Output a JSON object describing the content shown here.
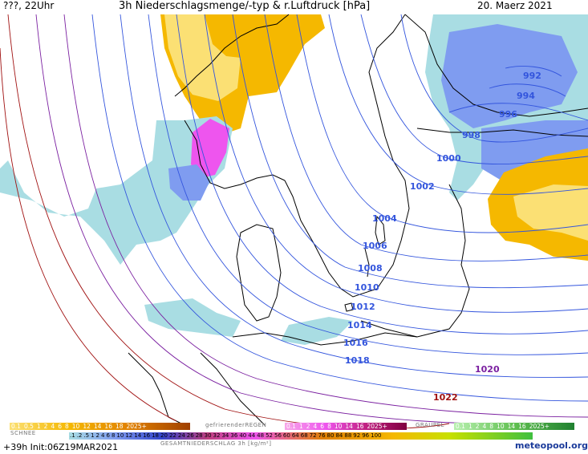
{
  "header": {
    "left": "???, 22Uhr",
    "title": "3h Niederschlagsmenge/-typ & r.Luftdruck [hPa]",
    "date": "20. Maerz 2021"
  },
  "isobars": [
    {
      "label": "992",
      "color": "#3355dd"
    },
    {
      "label": "994",
      "color": "#3355dd"
    },
    {
      "label": "996",
      "color": "#3355dd"
    },
    {
      "label": "998",
      "color": "#3355dd"
    },
    {
      "label": "1000",
      "color": "#3355dd"
    },
    {
      "label": "1002",
      "color": "#3355dd"
    },
    {
      "label": "1004",
      "color": "#3355dd"
    },
    {
      "label": "1006",
      "color": "#3355dd"
    },
    {
      "label": "1008",
      "color": "#3355dd"
    },
    {
      "label": "1010",
      "color": "#3355dd"
    },
    {
      "label": "1012",
      "color": "#3355dd"
    },
    {
      "label": "1014",
      "color": "#3355dd"
    },
    {
      "label": "1016",
      "color": "#3355dd"
    },
    {
      "label": "1018",
      "color": "#3355dd"
    },
    {
      "label": "1020",
      "color": "#7a1fa0"
    },
    {
      "label": "1022",
      "color": "#a01010"
    }
  ],
  "legend": {
    "snow_scale": [
      "0.1",
      "0.5",
      "1",
      "2",
      "4",
      "6",
      "8",
      "10",
      "12",
      "14",
      "16",
      "18",
      "2025+"
    ],
    "snow_caption": "SCHNEE",
    "freezing_caption": "gefrierenderREGEN",
    "freezing_scale": [
      "0.1",
      "1",
      "2",
      "4",
      "6",
      "8",
      "10",
      "14",
      "16",
      "2025+"
    ],
    "graupel_caption": "GRAUPEL",
    "graupel_scale": [
      "0.1",
      "1",
      "2",
      "4",
      "8",
      "10",
      "14",
      "16",
      "2025+"
    ],
    "total_scale": [
      ".1",
      ".2",
      ".5",
      "1",
      "2",
      "4",
      "6",
      "8",
      "10",
      "12",
      "14",
      "16",
      "18",
      "20",
      "22",
      "24",
      "26",
      "28",
      "30",
      "32",
      "34",
      "36",
      "40",
      "44",
      "48",
      "52",
      "56",
      "60",
      "64",
      "68",
      "72",
      "76",
      "80",
      "84",
      "88",
      "92",
      "96",
      "100"
    ],
    "total_caption": "GESAMTNIEDERSCHLAG 3h [kg/m²]"
  },
  "footer": {
    "run": "+39h Init:06Z19MAR2021",
    "brand": "meteopool.org"
  },
  "colors": {
    "snow": "#f5b800",
    "snow_light": "#fbe074",
    "rain_light": "#a9dde3",
    "rain_blue": "#7f9cf0",
    "mix_pink": "#ee55ee",
    "isobar_blue": "#3355dd",
    "isobar_purple": "#7a1fa0",
    "isobar_red": "#a01010"
  }
}
